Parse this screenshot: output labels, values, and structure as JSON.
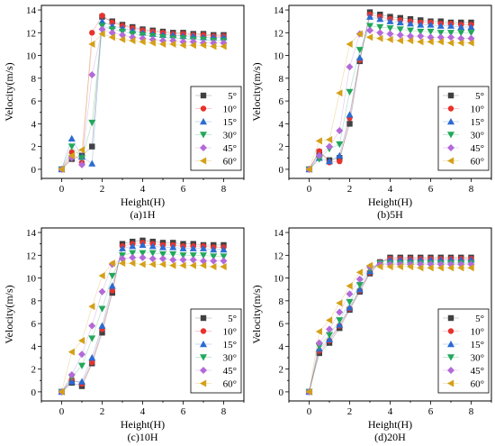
{
  "chart_data": [
    {
      "type": "line",
      "panel": "(a)1H",
      "caption": "(a)1H",
      "xlabel": "Height(H)",
      "ylabel": "Velocity(m/s)",
      "xlim": [
        -1,
        9
      ],
      "ylim": [
        -0.8,
        14.4
      ],
      "xticks": [
        0,
        2,
        4,
        6,
        8
      ],
      "yticks": [
        0,
        2,
        4,
        6,
        8,
        10,
        12,
        14
      ],
      "legend_position": "right",
      "grid": false,
      "series": [
        {
          "name": "5°",
          "color": "#404040",
          "marker": "square",
          "x": [
            0,
            0.5,
            1,
            1.5,
            2,
            2.5,
            3,
            3.5,
            4,
            4.5,
            5,
            5.5,
            6,
            6.5,
            7,
            7.5,
            8
          ],
          "y": [
            0,
            0.9,
            1.2,
            2.0,
            13.4,
            13.0,
            12.7,
            12.5,
            12.3,
            12.2,
            12.1,
            12.0,
            12.0,
            11.9,
            11.9,
            11.8,
            11.8
          ]
        },
        {
          "name": "10°",
          "color": "#e8322d",
          "marker": "circle",
          "x": [
            0,
            0.5,
            1,
            1.5,
            2,
            2.5,
            3,
            3.5,
            4,
            4.5,
            5,
            5.5,
            6,
            6.5,
            7,
            7.5,
            8
          ],
          "y": [
            0,
            1.5,
            0.6,
            12.0,
            13.5,
            12.9,
            12.6,
            12.4,
            12.2,
            12.1,
            12.0,
            11.9,
            11.9,
            11.8,
            11.8,
            11.7,
            11.7
          ]
        },
        {
          "name": "15°",
          "color": "#2b6bd1",
          "marker": "triangle-up",
          "x": [
            0,
            0.5,
            1,
            1.5,
            2,
            2.5,
            3,
            3.5,
            4,
            4.5,
            5,
            5.5,
            6,
            6.5,
            7,
            7.5,
            8
          ],
          "y": [
            0,
            2.7,
            1.1,
            0.5,
            13.0,
            12.6,
            12.4,
            12.2,
            12.0,
            11.9,
            11.8,
            11.8,
            11.7,
            11.7,
            11.6,
            11.6,
            11.6
          ]
        },
        {
          "name": "30°",
          "color": "#22a85a",
          "marker": "triangle-down",
          "x": [
            0,
            0.5,
            1,
            1.5,
            2,
            2.5,
            3,
            3.5,
            4,
            4.5,
            5,
            5.5,
            6,
            6.5,
            7,
            7.5,
            8
          ],
          "y": [
            0,
            2.0,
            1.0,
            4.1,
            12.6,
            12.3,
            12.1,
            11.9,
            11.8,
            11.7,
            11.6,
            11.5,
            11.5,
            11.4,
            11.4,
            11.3,
            11.3
          ]
        },
        {
          "name": "45°",
          "color": "#b36ad9",
          "marker": "diamond",
          "x": [
            0,
            0.5,
            1,
            1.5,
            2,
            2.5,
            3,
            3.5,
            4,
            4.5,
            5,
            5.5,
            6,
            6.5,
            7,
            7.5,
            8
          ],
          "y": [
            0,
            1.0,
            0.4,
            8.3,
            12.3,
            12.0,
            11.8,
            11.6,
            11.5,
            11.4,
            11.3,
            11.3,
            11.2,
            11.2,
            11.1,
            11.1,
            11.1
          ]
        },
        {
          "name": "60°",
          "color": "#d4a017",
          "marker": "triangle-left",
          "x": [
            0,
            0.5,
            1,
            1.5,
            2,
            2.5,
            3,
            3.5,
            4,
            4.5,
            5,
            5.5,
            6,
            6.5,
            7,
            7.5,
            8
          ],
          "y": [
            0,
            1.2,
            1.7,
            11.0,
            11.9,
            11.6,
            11.4,
            11.3,
            11.2,
            11.1,
            11.0,
            11.0,
            10.9,
            10.9,
            10.9,
            10.8,
            10.8
          ]
        }
      ]
    },
    {
      "type": "line",
      "panel": "(b)5H",
      "caption": "(b)5H",
      "xlabel": "Height(H)",
      "ylabel": "Velocity(m/s)",
      "xlim": [
        -1,
        9
      ],
      "ylim": [
        -0.8,
        14.4
      ],
      "xticks": [
        0,
        2,
        4,
        6,
        8
      ],
      "yticks": [
        0,
        2,
        4,
        6,
        8,
        10,
        12,
        14
      ],
      "legend_position": "right",
      "grid": false,
      "series": [
        {
          "name": "5°",
          "color": "#404040",
          "marker": "square",
          "x": [
            0,
            0.5,
            1,
            1.5,
            2,
            2.5,
            3,
            3.5,
            4,
            4.5,
            5,
            5.5,
            6,
            6.5,
            7,
            7.5,
            8
          ],
          "y": [
            0,
            1.5,
            0.8,
            1.0,
            4.0,
            9.5,
            13.8,
            13.6,
            13.4,
            13.3,
            13.2,
            13.1,
            13.0,
            13.0,
            12.9,
            12.9,
            12.9
          ]
        },
        {
          "name": "10°",
          "color": "#e8322d",
          "marker": "circle",
          "x": [
            0,
            0.5,
            1,
            1.5,
            2,
            2.5,
            3,
            3.5,
            4,
            4.5,
            5,
            5.5,
            6,
            6.5,
            7,
            7.5,
            8
          ],
          "y": [
            0,
            1.6,
            0.6,
            0.7,
            4.5,
            9.6,
            13.6,
            13.4,
            13.2,
            13.1,
            13.0,
            12.9,
            12.9,
            12.8,
            12.8,
            12.7,
            12.7
          ]
        },
        {
          "name": "15°",
          "color": "#2b6bd1",
          "marker": "triangle-up",
          "x": [
            0,
            0.5,
            1,
            1.5,
            2,
            2.5,
            3,
            3.5,
            4,
            4.5,
            5,
            5.5,
            6,
            6.5,
            7,
            7.5,
            8
          ],
          "y": [
            0,
            1.0,
            0.7,
            1.2,
            4.8,
            9.8,
            13.4,
            13.2,
            13.0,
            12.9,
            12.8,
            12.7,
            12.7,
            12.6,
            12.6,
            12.5,
            12.5
          ]
        },
        {
          "name": "30°",
          "color": "#22a85a",
          "marker": "triangle-down",
          "x": [
            0,
            0.5,
            1,
            1.5,
            2,
            2.5,
            3,
            3.5,
            4,
            4.5,
            5,
            5.5,
            6,
            6.5,
            7,
            7.5,
            8
          ],
          "y": [
            0,
            0.9,
            1.8,
            2.2,
            6.8,
            10.5,
            12.6,
            12.5,
            12.4,
            12.3,
            12.2,
            12.1,
            12.1,
            12.0,
            12.0,
            12.0,
            12.0
          ]
        },
        {
          "name": "45°",
          "color": "#b36ad9",
          "marker": "diamond",
          "x": [
            0,
            0.5,
            1,
            1.5,
            2,
            2.5,
            3,
            3.5,
            4,
            4.5,
            5,
            5.5,
            6,
            6.5,
            7,
            7.5,
            8
          ],
          "y": [
            0,
            1.2,
            2.0,
            3.4,
            9.0,
            11.9,
            12.2,
            12.0,
            11.9,
            11.8,
            11.7,
            11.7,
            11.6,
            11.6,
            11.6,
            11.5,
            11.5
          ]
        },
        {
          "name": "60°",
          "color": "#d4a017",
          "marker": "triangle-left",
          "x": [
            0,
            0.5,
            1,
            1.5,
            2,
            2.5,
            3,
            3.5,
            4,
            4.5,
            5,
            5.5,
            6,
            6.5,
            7,
            7.5,
            8
          ],
          "y": [
            0,
            2.5,
            2.6,
            6.7,
            11.0,
            11.9,
            11.6,
            11.5,
            11.4,
            11.3,
            11.3,
            11.2,
            11.2,
            11.2,
            11.1,
            11.1,
            11.1
          ]
        }
      ]
    },
    {
      "type": "line",
      "panel": "(c)10H",
      "caption": "(c)10H",
      "xlabel": "Height(H)",
      "ylabel": "Velocity(m/s)",
      "xlim": [
        -1,
        9
      ],
      "ylim": [
        -0.8,
        14.4
      ],
      "xticks": [
        0,
        2,
        4,
        6,
        8
      ],
      "yticks": [
        0,
        2,
        4,
        6,
        8,
        10,
        12,
        14
      ],
      "legend_position": "right",
      "grid": false,
      "series": [
        {
          "name": "5°",
          "color": "#404040",
          "marker": "square",
          "x": [
            0,
            0.5,
            1,
            1.5,
            2,
            2.5,
            3,
            3.5,
            4,
            4.5,
            5,
            5.5,
            6,
            6.5,
            7,
            7.5,
            8
          ],
          "y": [
            0,
            0.8,
            0.5,
            2.5,
            5.2,
            8.7,
            13.0,
            13.2,
            13.3,
            13.2,
            13.1,
            13.1,
            13.0,
            13.0,
            12.9,
            12.9,
            12.9
          ]
        },
        {
          "name": "10°",
          "color": "#e8322d",
          "marker": "circle",
          "x": [
            0,
            0.5,
            1,
            1.5,
            2,
            2.5,
            3,
            3.5,
            4,
            4.5,
            5,
            5.5,
            6,
            6.5,
            7,
            7.5,
            8
          ],
          "y": [
            0,
            1.1,
            0.7,
            2.6,
            5.5,
            8.9,
            12.8,
            13.0,
            13.1,
            13.0,
            12.9,
            12.9,
            12.8,
            12.8,
            12.8,
            12.7,
            12.7
          ]
        },
        {
          "name": "15°",
          "color": "#2b6bd1",
          "marker": "triangle-up",
          "x": [
            0,
            0.5,
            1,
            1.5,
            2,
            2.5,
            3,
            3.5,
            4,
            4.5,
            5,
            5.5,
            6,
            6.5,
            7,
            7.5,
            8
          ],
          "y": [
            0,
            0.9,
            0.9,
            3.0,
            5.8,
            9.3,
            12.6,
            12.8,
            12.9,
            12.8,
            12.7,
            12.7,
            12.6,
            12.6,
            12.6,
            12.5,
            12.5
          ]
        },
        {
          "name": "30°",
          "color": "#22a85a",
          "marker": "triangle-down",
          "x": [
            0,
            0.5,
            1,
            1.5,
            2,
            2.5,
            3,
            3.5,
            4,
            4.5,
            5,
            5.5,
            6,
            6.5,
            7,
            7.5,
            8
          ],
          "y": [
            0,
            1.3,
            2.3,
            4.7,
            7.3,
            10.2,
            12.0,
            12.2,
            12.2,
            12.2,
            12.1,
            12.1,
            12.0,
            12.0,
            12.0,
            11.9,
            11.9
          ]
        },
        {
          "name": "45°",
          "color": "#b36ad9",
          "marker": "diamond",
          "x": [
            0,
            0.5,
            1,
            1.5,
            2,
            2.5,
            3,
            3.5,
            4,
            4.5,
            5,
            5.5,
            6,
            6.5,
            7,
            7.5,
            8
          ],
          "y": [
            0,
            1.5,
            3.3,
            5.8,
            8.8,
            11.2,
            11.7,
            11.8,
            11.8,
            11.7,
            11.7,
            11.6,
            11.6,
            11.6,
            11.5,
            11.5,
            11.5
          ]
        },
        {
          "name": "60°",
          "color": "#d4a017",
          "marker": "triangle-left",
          "x": [
            0,
            0.5,
            1,
            1.5,
            2,
            2.5,
            3,
            3.5,
            4,
            4.5,
            5,
            5.5,
            6,
            6.5,
            7,
            7.5,
            8
          ],
          "y": [
            0,
            3.5,
            4.5,
            7.5,
            10.2,
            11.3,
            11.3,
            11.3,
            11.2,
            11.2,
            11.2,
            11.1,
            11.1,
            11.1,
            11.1,
            11.0,
            11.0
          ]
        }
      ]
    },
    {
      "type": "line",
      "panel": "(d)20H",
      "caption": "(d)20H",
      "xlabel": "Height(H)",
      "ylabel": "Velocity(m/s)",
      "xlim": [
        -1,
        9
      ],
      "ylim": [
        -0.8,
        14.4
      ],
      "xticks": [
        0,
        2,
        4,
        6,
        8
      ],
      "yticks": [
        0,
        2,
        4,
        6,
        8,
        10,
        12,
        14
      ],
      "legend_position": "right",
      "grid": false,
      "series": [
        {
          "name": "5°",
          "color": "#404040",
          "marker": "square",
          "x": [
            0,
            0.5,
            1,
            1.5,
            2,
            2.5,
            3,
            3.5,
            4,
            4.5,
            5,
            5.5,
            6,
            6.5,
            7,
            7.5,
            8
          ],
          "y": [
            0,
            3.4,
            4.3,
            5.6,
            7.2,
            8.8,
            10.4,
            11.4,
            11.8,
            11.8,
            11.8,
            11.8,
            11.8,
            11.8,
            11.8,
            11.8,
            11.8
          ]
        },
        {
          "name": "10°",
          "color": "#e8322d",
          "marker": "circle",
          "x": [
            0,
            0.5,
            1,
            1.5,
            2,
            2.5,
            3,
            3.5,
            4,
            4.5,
            5,
            5.5,
            6,
            6.5,
            7,
            7.5,
            8
          ],
          "y": [
            0,
            3.6,
            4.5,
            5.8,
            7.3,
            8.9,
            10.5,
            11.4,
            11.7,
            11.7,
            11.7,
            11.7,
            11.7,
            11.7,
            11.7,
            11.7,
            11.7
          ]
        },
        {
          "name": "15°",
          "color": "#2b6bd1",
          "marker": "triangle-up",
          "x": [
            0,
            0.5,
            1,
            1.5,
            2,
            2.5,
            3,
            3.5,
            4,
            4.5,
            5,
            5.5,
            6,
            6.5,
            7,
            7.5,
            8
          ],
          "y": [
            0,
            3.8,
            4.6,
            5.9,
            7.4,
            9.0,
            10.6,
            11.4,
            11.6,
            11.6,
            11.6,
            11.6,
            11.6,
            11.6,
            11.6,
            11.6,
            11.6
          ]
        },
        {
          "name": "30°",
          "color": "#22a85a",
          "marker": "triangle-down",
          "x": [
            0,
            0.5,
            1,
            1.5,
            2,
            2.5,
            3,
            3.5,
            4,
            4.5,
            5,
            5.5,
            6,
            6.5,
            7,
            7.5,
            8
          ],
          "y": [
            0,
            4.0,
            5.0,
            6.3,
            7.9,
            9.4,
            10.8,
            11.3,
            11.3,
            11.3,
            11.3,
            11.3,
            11.3,
            11.3,
            11.3,
            11.3,
            11.3
          ]
        },
        {
          "name": "45°",
          "color": "#b36ad9",
          "marker": "diamond",
          "x": [
            0,
            0.5,
            1,
            1.5,
            2,
            2.5,
            3,
            3.5,
            4,
            4.5,
            5,
            5.5,
            6,
            6.5,
            7,
            7.5,
            8
          ],
          "y": [
            0,
            4.3,
            5.5,
            7.0,
            8.6,
            9.9,
            11.0,
            11.2,
            11.2,
            11.2,
            11.2,
            11.2,
            11.2,
            11.2,
            11.2,
            11.2,
            11.2
          ]
        },
        {
          "name": "60°",
          "color": "#d4a017",
          "marker": "triangle-left",
          "x": [
            0,
            0.5,
            1,
            1.5,
            2,
            2.5,
            3,
            3.5,
            4,
            4.5,
            5,
            5.5,
            6,
            6.5,
            7,
            7.5,
            8
          ],
          "y": [
            0,
            5.3,
            6.3,
            7.8,
            9.3,
            10.5,
            11.1,
            11.0,
            11.0,
            11.0,
            11.0,
            10.9,
            10.9,
            10.9,
            10.9,
            10.9,
            10.9
          ]
        }
      ]
    }
  ]
}
